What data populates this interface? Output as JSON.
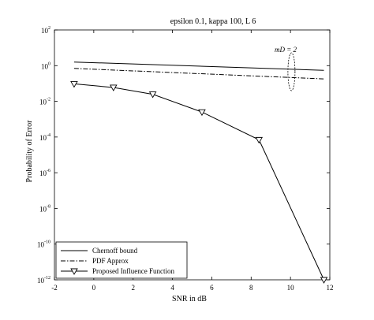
{
  "chart_data": {
    "type": "line",
    "title": "epsilon  0.1, kappa  100, L  6",
    "xlabel": "SNR in dB",
    "ylabel": "Probability of Error",
    "xlim": [
      -2,
      12
    ],
    "ylim_exponent": [
      -12,
      2
    ],
    "y_scale": "log",
    "x_ticks": [
      "-2",
      "0",
      "2",
      "4",
      "6",
      "8",
      "10",
      "12"
    ],
    "y_tick_exponents": [
      "2",
      "0",
      "-2",
      "-4",
      "-6",
      "-8",
      "-10",
      "-12"
    ],
    "y_tick_base": "10",
    "annotation": "mD = 2",
    "grid": false,
    "legend_position": "bottom-left",
    "series": [
      {
        "name": "Chernoff bound",
        "style": "solid",
        "marker": "none",
        "x": [
          -1,
          11.7
        ],
        "y": [
          1.6,
          0.55
        ]
      },
      {
        "name": "PDF Approx",
        "style": "dashdot",
        "marker": "none",
        "x": [
          -1,
          11.7
        ],
        "y": [
          0.7,
          0.18
        ]
      },
      {
        "name": "Proposed Influence Function",
        "style": "solid",
        "marker": "triangle-down",
        "x": [
          -1,
          1,
          3,
          5.5,
          8.4,
          11.7
        ],
        "y": [
          0.095,
          0.06,
          0.025,
          0.0025,
          7e-05,
          1e-12
        ]
      }
    ]
  }
}
